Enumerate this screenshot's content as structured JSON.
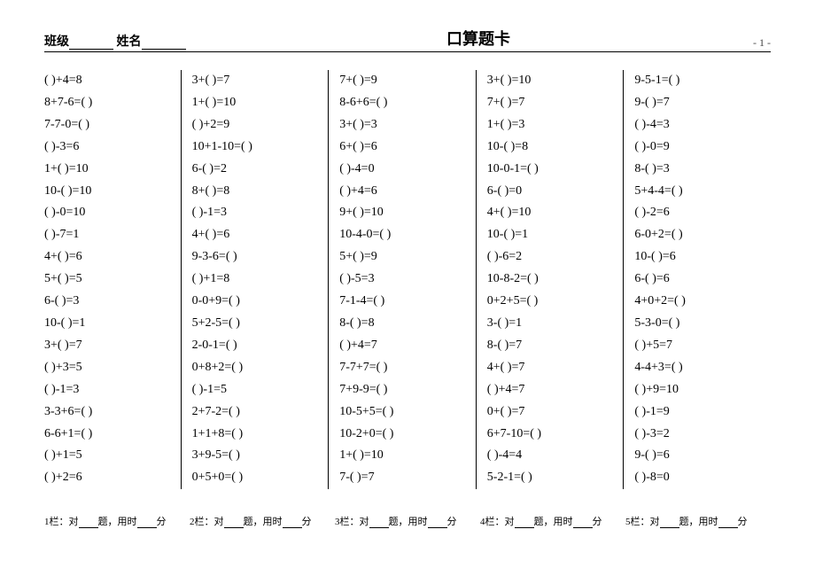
{
  "header": {
    "class_label": "班级",
    "name_label": "姓名",
    "title": "口算题卡",
    "page_no": "- 1 -"
  },
  "columns": [
    [
      "(   )+4=8",
      "8+7-6=(   )",
      "7-7-0=(   )",
      "(   )-3=6",
      "1+(   )=10",
      "10-(   )=10",
      "(   )-0=10",
      "(   )-7=1",
      "4+(   )=6",
      "5+(   )=5",
      "6-(   )=3",
      "10-(    )=1",
      "3+(   )=7",
      "(   )+3=5",
      "(   )-1=3",
      "3-3+6=(   )",
      "6-6+1=(   )",
      "(   )+1=5",
      "(   )+2=6"
    ],
    [
      "3+(   )=7",
      "1+(   )=10",
      "(   )+2=9",
      "10+1-10=(   )",
      "6-(   )=2",
      "8+(   )=8",
      "(   )-1=3",
      "4+(   )=6",
      "9-3-6=(   )",
      "(   )+1=8",
      "0-0+9=(   )",
      "5+2-5=(   )",
      "2-0-1=(   )",
      "0+8+2=(   )",
      "(   )-1=5",
      "2+7-2=(   )",
      "1+1+8=(   )",
      "3+9-5=(   )",
      "0+5+0=(   )"
    ],
    [
      "7+(   )=9",
      "8-6+6=(   )",
      "3+(   )=3",
      "6+(   )=6",
      "(   )-4=0",
      "(   )+4=6",
      "9+(   )=10",
      "10-4-0=(   )",
      "5+(   )=9",
      "(   )-5=3",
      "7-1-4=(   )",
      "8-(   )=8",
      "(   )+4=7",
      "7-7+7=(   )",
      "7+9-9=(   )",
      "10-5+5=(   )",
      "10-2+0=(   )",
      "1+(   )=10",
      "7-(   )=7"
    ],
    [
      "3+(   )=10",
      "7+(   )=7",
      "1+(   )=3",
      "10-(   )=8",
      "10-0-1=(   )",
      "6-(   )=0",
      "4+(   )=10",
      "10-(   )=1",
      "(   )-6=2",
      "10-8-2=(   )",
      "0+2+5=(   )",
      "3-(   )=1",
      "8-(   )=7",
      "4+(   )=7",
      "(   )+4=7",
      "0+(   )=7",
      "6+7-10=(   )",
      "(   )-4=4",
      "5-2-1=(   )"
    ],
    [
      "9-5-1=(   )",
      "9-(   )=7",
      "(   )-4=3",
      "(   )-0=9",
      "8-(   )=3",
      "5+4-4=(   )",
      "(   )-2=6",
      "6-0+2=(   )",
      "10-(   )=6",
      "6-(   )=6",
      "4+0+2=(   )",
      "5-3-0=(   )",
      "(   )+5=7",
      "4-4+3=(   )",
      "(   )+9=10",
      "(   )-1=9",
      "(   )-3=2",
      "9-(   )=6",
      "(   )-8=0"
    ]
  ],
  "footer": {
    "items": [
      {
        "prefix": "1栏：对",
        "mid": "题，用时",
        "suffix": "分"
      },
      {
        "prefix": "2栏：对",
        "mid": "题，用时",
        "suffix": "分"
      },
      {
        "prefix": "3栏：对",
        "mid": "题，用时",
        "suffix": "分"
      },
      {
        "prefix": "4栏：对",
        "mid": "题，用时",
        "suffix": "分"
      },
      {
        "prefix": "5栏：对",
        "mid": "题，用时",
        "suffix": "分"
      }
    ]
  }
}
